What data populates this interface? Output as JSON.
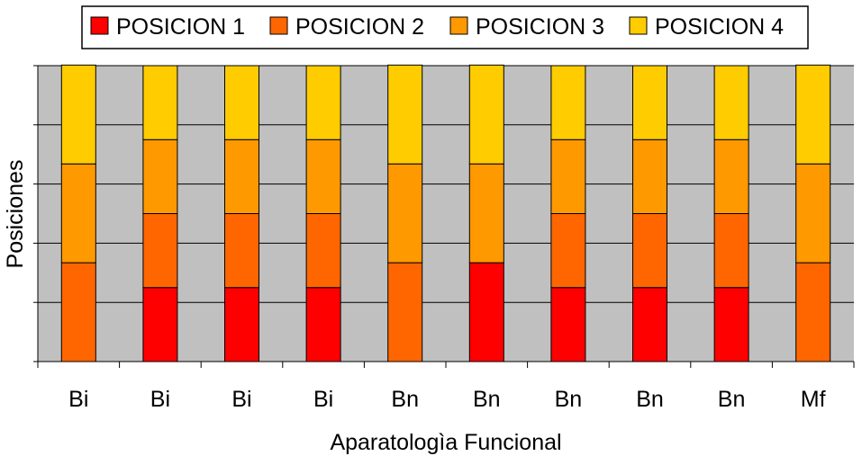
{
  "chart_data": {
    "type": "bar",
    "stacked": true,
    "title": "",
    "xlabel": "Aparatologìa Funcional",
    "ylabel": "Posiciones",
    "categories": [
      "Bi",
      "Bi",
      "Bi",
      "Bi",
      "Bn",
      "Bn",
      "Bn",
      "Bn",
      "Bn",
      "Mf"
    ],
    "series": [
      {
        "name": "POSICION 1",
        "color": "#ff0000",
        "values": [
          0,
          1.25,
          1.25,
          1.25,
          0,
          1.67,
          1.25,
          1.25,
          1.25,
          0
        ]
      },
      {
        "name": "POSICION 2",
        "color": "#ff6600",
        "values": [
          1.67,
          1.25,
          1.25,
          1.25,
          1.67,
          0,
          1.25,
          1.25,
          1.25,
          1.67
        ]
      },
      {
        "name": "POSICION 3",
        "color": "#ff9900",
        "values": [
          1.67,
          1.25,
          1.25,
          1.25,
          1.67,
          1.67,
          1.25,
          1.25,
          1.25,
          1.67
        ]
      },
      {
        "name": "POSICION 4",
        "color": "#ffcc00",
        "values": [
          1.67,
          1.25,
          1.25,
          1.25,
          1.67,
          1.67,
          1.25,
          1.25,
          1.25,
          1.67
        ]
      }
    ],
    "ylim": [
      0,
      5
    ],
    "yticks": [
      0,
      1,
      2,
      3,
      4,
      5
    ],
    "grid": true,
    "plot_background": "#c0c0c0",
    "legend_position": "top"
  }
}
